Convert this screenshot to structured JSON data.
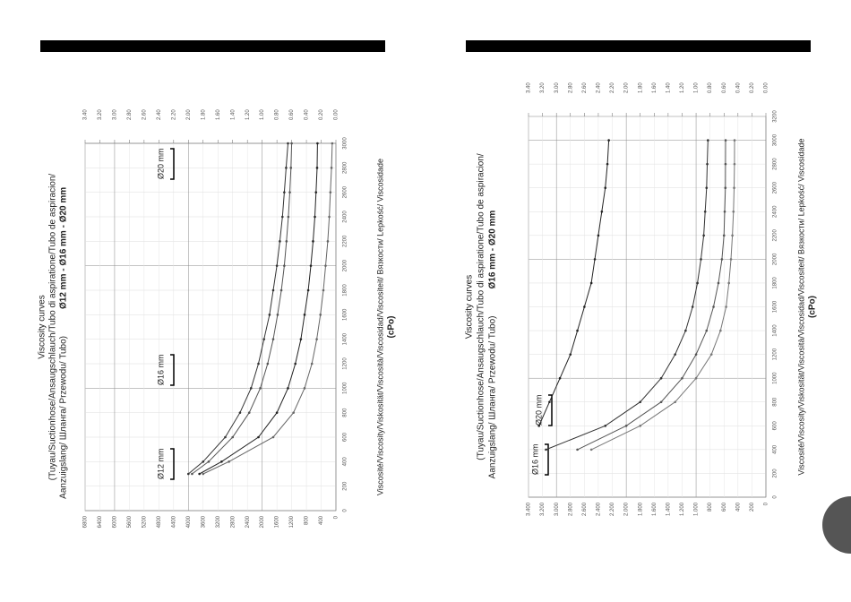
{
  "chart_data": [
    {
      "type": "line",
      "title": "Viscosity curves",
      "subtitle": [
        "(Tuyau/Suctionhose/Ansaugschlauch/Tubo di aspiratione/Tubo de aspiracion/",
        "Aanzuigslang/ Шланга/ Przewodu/ Tubo)"
      ],
      "size_range": "Ø12 mm - Ø16 mm - Ø20 mm",
      "x_label": "Viscosité/Viscosity/Viskosität/Viscosità/Viscosidad/Viscositeit/ Вязкости/ Lepkość/ Viscosidade",
      "x_unit": "(cPo)",
      "annotations": [
        "Ø12 mm",
        "Ø16 mm",
        "Ø20 mm"
      ],
      "x": [
        300,
        400,
        600,
        800,
        1000,
        1200,
        1400,
        1600,
        1800,
        2000,
        2200,
        2400,
        2600,
        2800,
        3000
      ],
      "series": [
        {
          "color": "#333333",
          "values": [
            4000,
            3600,
            3000,
            2600,
            2300,
            2100,
            1950,
            1800,
            1700,
            1600,
            1520,
            1450,
            1400,
            1350,
            1300
          ]
        },
        {
          "color": "#555555",
          "values": [
            3900,
            3450,
            2800,
            2350,
            2050,
            1850,
            1700,
            1580,
            1480,
            1400,
            1340,
            1290,
            1250,
            1220,
            1200
          ]
        },
        {
          "color": "#222222",
          "values": [
            3700,
            3100,
            2100,
            1600,
            1300,
            1100,
            950,
            850,
            750,
            680,
            620,
            570,
            540,
            510,
            500
          ]
        },
        {
          "color": "#666666",
          "values": [
            3600,
            2900,
            1700,
            1150,
            850,
            650,
            520,
            420,
            340,
            280,
            220,
            180,
            150,
            120,
            100
          ]
        }
      ],
      "xlim": [
        0,
        3000
      ],
      "xticks": [
        0,
        200,
        400,
        600,
        800,
        1000,
        1200,
        1400,
        1600,
        1800,
        2000,
        2200,
        2400,
        2600,
        2800,
        3000
      ],
      "ylim": [
        0,
        6800
      ],
      "yticks": [
        0,
        400,
        800,
        1200,
        1600,
        2000,
        2400,
        2800,
        3200,
        3600,
        4000,
        4400,
        4800,
        5200,
        5600,
        6000,
        6400,
        6800
      ],
      "y2lim": [
        0,
        3.4
      ],
      "y2ticks": [
        {
          "value": 0,
          "label": "0.00"
        },
        {
          "value": 0.2,
          "label": "0.20"
        },
        {
          "value": 0.4,
          "label": "0.40"
        },
        {
          "value": 0.6,
          "label": "0.60"
        },
        {
          "value": 0.8,
          "label": "0.80"
        },
        {
          "value": 1,
          "label": "1.00"
        },
        {
          "value": 1.2,
          "label": "1.20"
        },
        {
          "value": 1.4,
          "label": "1.40"
        },
        {
          "value": 1.6,
          "label": "1.60"
        },
        {
          "value": 1.8,
          "label": "1.80"
        },
        {
          "value": 2,
          "label": "2.00"
        },
        {
          "value": 2.2,
          "label": "2.20"
        },
        {
          "value": 2.4,
          "label": "2.40"
        },
        {
          "value": 2.6,
          "label": "2.60"
        },
        {
          "value": 2.8,
          "label": "2.80"
        },
        {
          "value": 3,
          "label": "3.00"
        },
        {
          "value": 3.2,
          "label": "3.20"
        },
        {
          "value": 3.4,
          "label": "3.40"
        }
      ],
      "grid": true
    },
    {
      "type": "line",
      "title": "Viscosity curves",
      "subtitle": [
        "(Tuyau/Suctionhose/Ansaugschlauch/Tubo di aspiratione/Tubo de aspiracion/",
        "Aanzuigslang/ Шланга/ Przewodu/ Tubo)"
      ],
      "size_range": "Ø16 mm - Ø20 mm",
      "x_label": "Viscosité/Viscosity/Viskosität/Viscosità/Viscosidad/Viscositeit/ Вязкости/ Lepkość/ Viscosidade",
      "x_unit": "(cPo)",
      "annotations": [
        "Ø16 mm",
        "Ø20 mm"
      ],
      "x": [
        400,
        600,
        800,
        1000,
        1200,
        1400,
        1600,
        1800,
        2000,
        2200,
        2400,
        2600,
        2800,
        3000
      ],
      "series": [
        {
          "color": "#222222",
          "values": [
            null,
            3250,
            3100,
            2950,
            2800,
            2700,
            2600,
            2500,
            2450,
            2400,
            2350,
            2300,
            2270,
            2250
          ]
        },
        {
          "color": "#333333",
          "values": [
            3150,
            2300,
            1800,
            1500,
            1300,
            1150,
            1050,
            980,
            930,
            890,
            870,
            850,
            840,
            830
          ]
        },
        {
          "color": "#555555",
          "values": [
            2700,
            2000,
            1500,
            1200,
            1000,
            850,
            750,
            680,
            630,
            600,
            590,
            580,
            578,
            577
          ]
        },
        {
          "color": "#777777",
          "values": [
            2500,
            1800,
            1300,
            1000,
            780,
            650,
            570,
            530,
            500,
            480,
            465,
            455,
            450,
            449
          ]
        }
      ],
      "xlim": [
        0,
        3200
      ],
      "xticks": [
        0,
        200,
        400,
        600,
        800,
        1000,
        1200,
        1400,
        1600,
        1800,
        2000,
        2200,
        2400,
        2600,
        2800,
        3000,
        3200
      ],
      "ylim": [
        0,
        3400
      ],
      "yticks": [
        0,
        200,
        400,
        600,
        800,
        {
          "value": 1000,
          "label": "1.000"
        },
        {
          "value": 1200,
          "label": "1.200"
        },
        {
          "value": 1400,
          "label": "1.400"
        },
        {
          "value": 1600,
          "label": "1.600"
        },
        {
          "value": 1800,
          "label": "1.800"
        },
        {
          "value": 2000,
          "label": "2.000"
        },
        {
          "value": 2200,
          "label": "2.200"
        },
        {
          "value": 2400,
          "label": "2.400"
        },
        {
          "value": 2600,
          "label": "2.600"
        },
        {
          "value": 2800,
          "label": "2.800"
        },
        {
          "value": 3000,
          "label": "3.000"
        },
        {
          "value": 3200,
          "label": "3.200"
        },
        {
          "value": 3400,
          "label": "3.400"
        }
      ],
      "y2lim": [
        0,
        3.4
      ],
      "y2ticks": [
        {
          "value": 0,
          "label": "0.00"
        },
        {
          "value": 0.2,
          "label": "0.20"
        },
        {
          "value": 0.4,
          "label": "0.40"
        },
        {
          "value": 0.6,
          "label": "0.60"
        },
        {
          "value": 0.8,
          "label": "0.80"
        },
        {
          "value": 1,
          "label": "1.00"
        },
        {
          "value": 1.2,
          "label": "1.20"
        },
        {
          "value": 1.4,
          "label": "1.40"
        },
        {
          "value": 1.6,
          "label": "1.60"
        },
        {
          "value": 1.8,
          "label": "1.80"
        },
        {
          "value": 2,
          "label": "2.00"
        },
        {
          "value": 2.2,
          "label": "2.20"
        },
        {
          "value": 2.4,
          "label": "2.40"
        },
        {
          "value": 2.6,
          "label": "2.60"
        },
        {
          "value": 2.8,
          "label": "2.80"
        },
        {
          "value": 3,
          "label": "3.00"
        },
        {
          "value": 3.2,
          "label": "3.20"
        },
        {
          "value": 3.4,
          "label": "3.40"
        }
      ],
      "grid": true
    }
  ]
}
